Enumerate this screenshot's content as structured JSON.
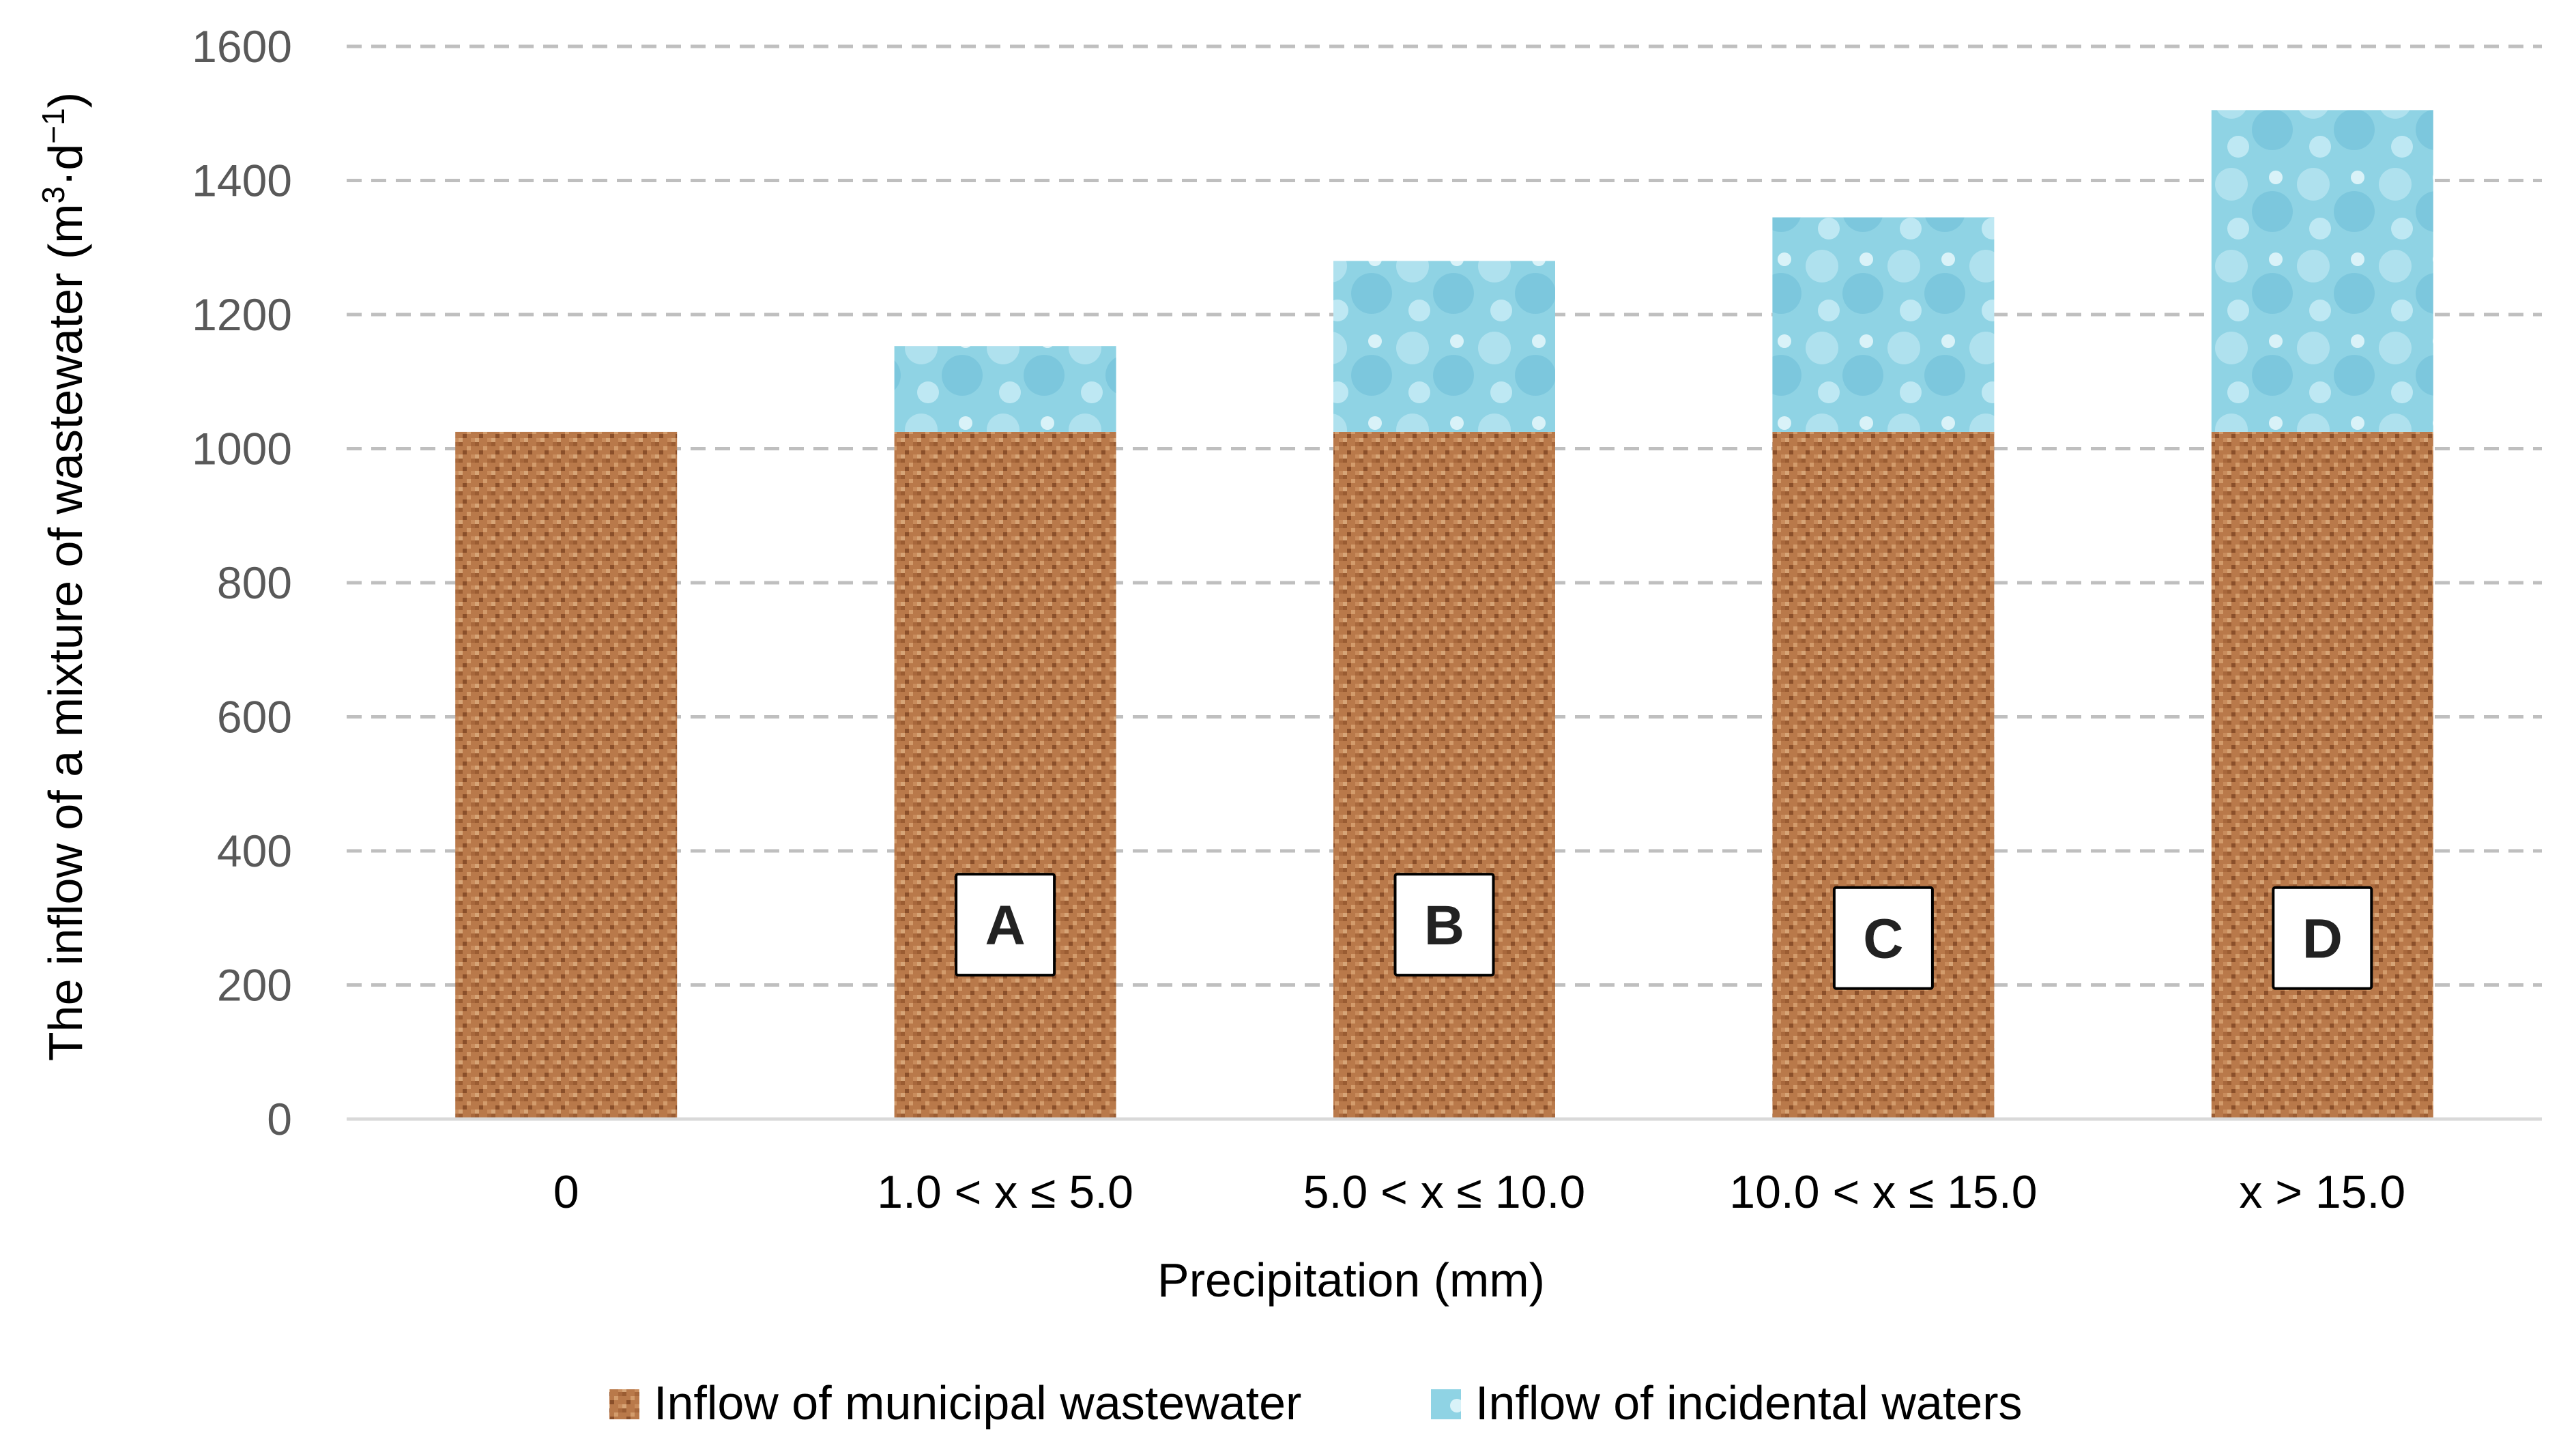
{
  "chart_data": {
    "type": "bar",
    "stacked": true,
    "categories": [
      "0",
      "1.0 < x ≤ 5.0",
      "5.0 < x ≤ 10.0",
      "10.0 < x ≤ 15.0",
      "x > 15.0"
    ],
    "series": [
      {
        "name": "Inflow of municipal wastewater",
        "values": [
          1025,
          1025,
          1025,
          1025,
          1025
        ],
        "color": "#b9794a"
      },
      {
        "name": "Inflow of incidental waters",
        "values": [
          0,
          128,
          255,
          320,
          480
        ],
        "color": "#8fd3e4"
      }
    ],
    "box_labels": [
      "",
      "A",
      "B",
      "C",
      "D"
    ],
    "title": "",
    "xlabel": "Precipitation  (mm)",
    "ylabel_main": "The inflow of a mixture of wastewater  (m",
    "ylabel_sup1": "3",
    "ylabel_mid": "·d",
    "ylabel_sup2": "−1",
    "ylabel_end": ")",
    "ylim": [
      0,
      1600
    ],
    "yticks": [
      0,
      200,
      400,
      600,
      800,
      1000,
      1200,
      1400,
      1600
    ],
    "grid": true,
    "legend_position": "bottom"
  },
  "colors": {
    "municipal": "#b9794a",
    "incidental": "#8fd3e4",
    "grid": "#bfbfbf",
    "axis": "#d9d9d9"
  }
}
